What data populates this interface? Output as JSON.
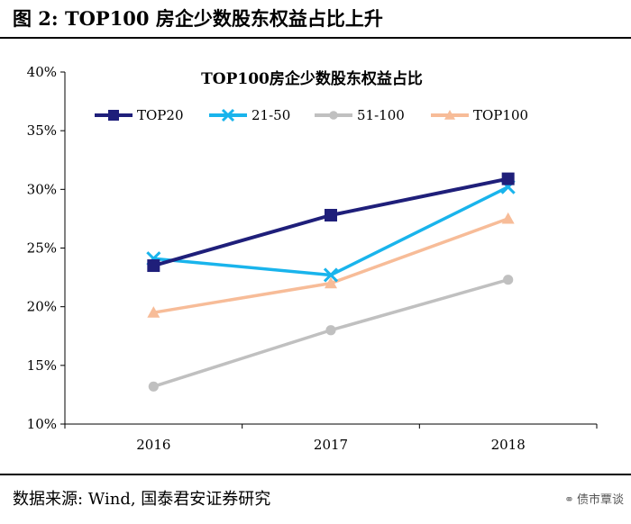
{
  "figure_title": "图 2:  TOP100 房企少数股东权益占比上升",
  "source_text": "数据来源:  Wind, 国泰君安证券研究",
  "watermark": {
    "icon": "wechat-icon",
    "text": "债市覃谈"
  },
  "chart_data": {
    "type": "line",
    "title": "TOP100房企少数股东权益占比",
    "xlabel": "",
    "ylabel": "",
    "categories": [
      "2016",
      "2017",
      "2018"
    ],
    "ylim": [
      10,
      40
    ],
    "yticks": [
      10,
      15,
      20,
      25,
      30,
      35,
      40
    ],
    "ytick_labels": [
      "10%",
      "15%",
      "20%",
      "25%",
      "30%",
      "35%",
      "40%"
    ],
    "legend_position": "top",
    "grid": false,
    "series": [
      {
        "name": "TOP20",
        "values": [
          23.5,
          27.8,
          30.9
        ],
        "color": "#1f1f7a",
        "marker": "square"
      },
      {
        "name": "21-50",
        "values": [
          24.1,
          22.7,
          30.2
        ],
        "color": "#19b4ec",
        "marker": "x"
      },
      {
        "name": "51-100",
        "values": [
          13.2,
          18.0,
          22.3
        ],
        "color": "#c0c0c0",
        "marker": "circle"
      },
      {
        "name": "TOP100",
        "values": [
          19.5,
          22.0,
          27.5
        ],
        "color": "#f7bc98",
        "marker": "triangle"
      }
    ]
  }
}
